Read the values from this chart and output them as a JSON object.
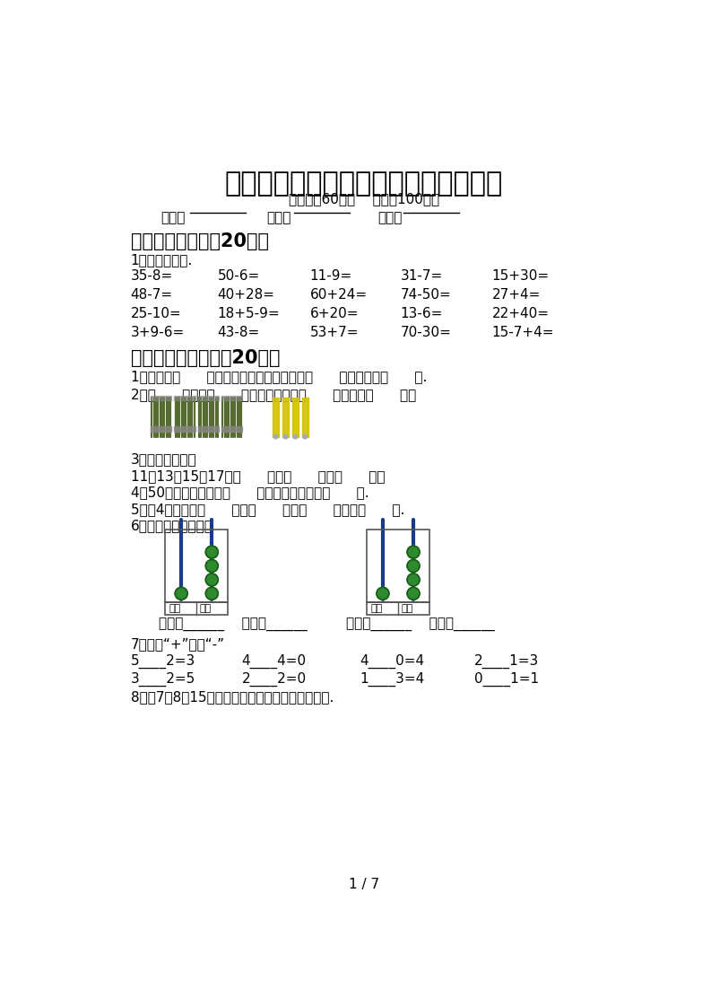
{
  "title": "小学一年级数学下册期末试卷（最新）",
  "subtitle": "（时间：60分钟    分数：100分）",
  "label_class": "班级：",
  "label_name": "姓名：",
  "label_score": "分数：",
  "section1_title": "一、计算小能手（20分）",
  "section1_sub": "1、直接写得数.",
  "calc_rows": [
    [
      "35-8=",
      "50-6=",
      "11-9=",
      "31-7=",
      "15+30="
    ],
    [
      "48-7=",
      "40+28=",
      "60+24=",
      "74-50=",
      "27+4="
    ],
    [
      "25-10=",
      "18+5-9=",
      "6+20=",
      "13-6=",
      "22+40="
    ],
    [
      "3+9-6=",
      "43-8=",
      "53+7=",
      "70-30=",
      "15-7+4="
    ]
  ],
  "section2_title": "二、填空题。（共（20分）",
  "fill_q1": "1、一共有（      ）个人在排队买票，排在第（      ），排在第（      ）.",
  "fill_q2": "2、（      ）个十（      ）个一合起来是（      ），读作（      ）。",
  "fill_q3": "3、找规律填数。",
  "fill_q3b": "11，13，15，17，（      ），（      ），（      ）。",
  "fill_q4": "4、50前面的一个数是（      ），后面一个数是（      ）.",
  "fill_q5": "5、比4小的数有（      ），（      ），（      ）还有（      ）.",
  "fill_q6": "6、写一写，读一读。",
  "write_read1": "写作：______    读作：______",
  "write_read2": "写作：______    读作：______",
  "fill_q7": "7、填上“+”或者“-”",
  "calc2_r1": [
    "5____2=3",
    "4____4=0",
    "4____0=4",
    "2____1=3"
  ],
  "calc2_r2": [
    "3____2=5",
    "2____2=0",
    "1____3=4",
    "0____1=1"
  ],
  "fill_q8": "8、用7、8、15写出一道加法算式和一道减法算式.",
  "page_num": "1 / 7",
  "bg_color": "#ffffff"
}
